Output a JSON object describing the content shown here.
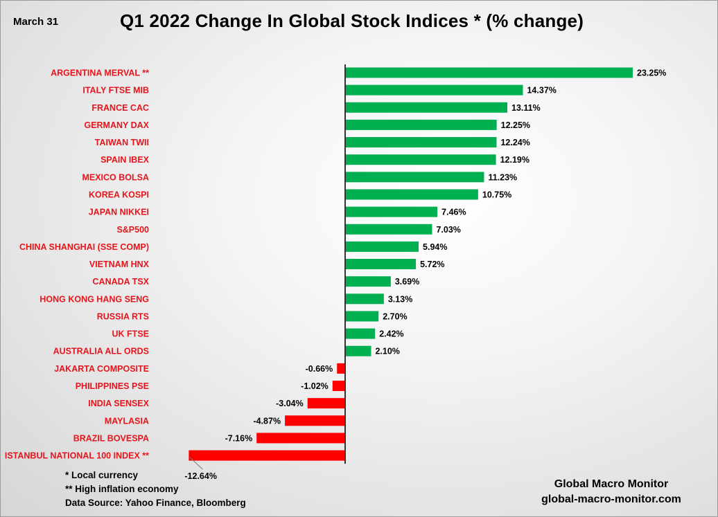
{
  "header": {
    "date": "March 31",
    "title": "Q1 2022 Change In Global Stock Indices * (% change)"
  },
  "footnotes": {
    "local_currency": "* Local currency",
    "high_inflation": "**  High inflation economy",
    "source": "Data Source:  Yahoo Finance, Bloomberg"
  },
  "brand": {
    "name": "Global Macro Monitor",
    "url": "global-macro-monitor.com"
  },
  "chart_data": {
    "type": "bar",
    "orientation": "horizontal",
    "title": "Q1 2022 Change In Global Stock Indices * (% change)",
    "categories": [
      "ARGENTINA MERVAL **",
      "ITALY FTSE MIB",
      "FRANCE CAC",
      "GERMANY DAX",
      "TAIWAN  TWII",
      "SPAIN IBEX",
      "MEXICO BOLSA",
      "KOREA KOSPI",
      "JAPAN NIKKEI",
      "S&P500",
      "CHINA SHANGHAI (SSE COMP)",
      "VIETNAM HNX",
      "CANADA TSX",
      "HONG KONG HANG SENG",
      "RUSSIA RTS",
      "UK FTSE",
      "AUSTRALIA ALL ORDS",
      "JAKARTA COMPOSITE",
      "PHILIPPINES PSE",
      "INDIA SENSEX",
      "MAYLASIA",
      "BRAZIL BOVESPA",
      "ISTANBUL NATIONAL 100 INDEX **"
    ],
    "values": [
      23.25,
      14.37,
      13.11,
      12.25,
      12.24,
      12.19,
      11.23,
      10.75,
      7.46,
      7.03,
      5.94,
      5.72,
      3.69,
      3.13,
      2.7,
      2.42,
      2.1,
      -0.66,
      -1.02,
      -3.04,
      -4.87,
      -7.16,
      -12.64
    ],
    "value_labels": [
      "23.25%",
      "14.37%",
      "13.11%",
      "12.25%",
      "12.24%",
      "12.19%",
      "11.23%",
      "10.75%",
      "7.46%",
      "7.03%",
      "5.94%",
      "5.72%",
      "3.69%",
      "3.13%",
      "2.70%",
      "2.42%",
      "2.10%",
      "-0.66%",
      "-1.02%",
      "-3.04%",
      "-4.87%",
      "-7.16%",
      "-12.64%"
    ],
    "colors": {
      "positive": "#00b050",
      "negative": "#ff0000",
      "label": "#e8141c"
    },
    "xlim": [
      -12.64,
      23.25
    ],
    "grid": false,
    "legend": "none"
  }
}
